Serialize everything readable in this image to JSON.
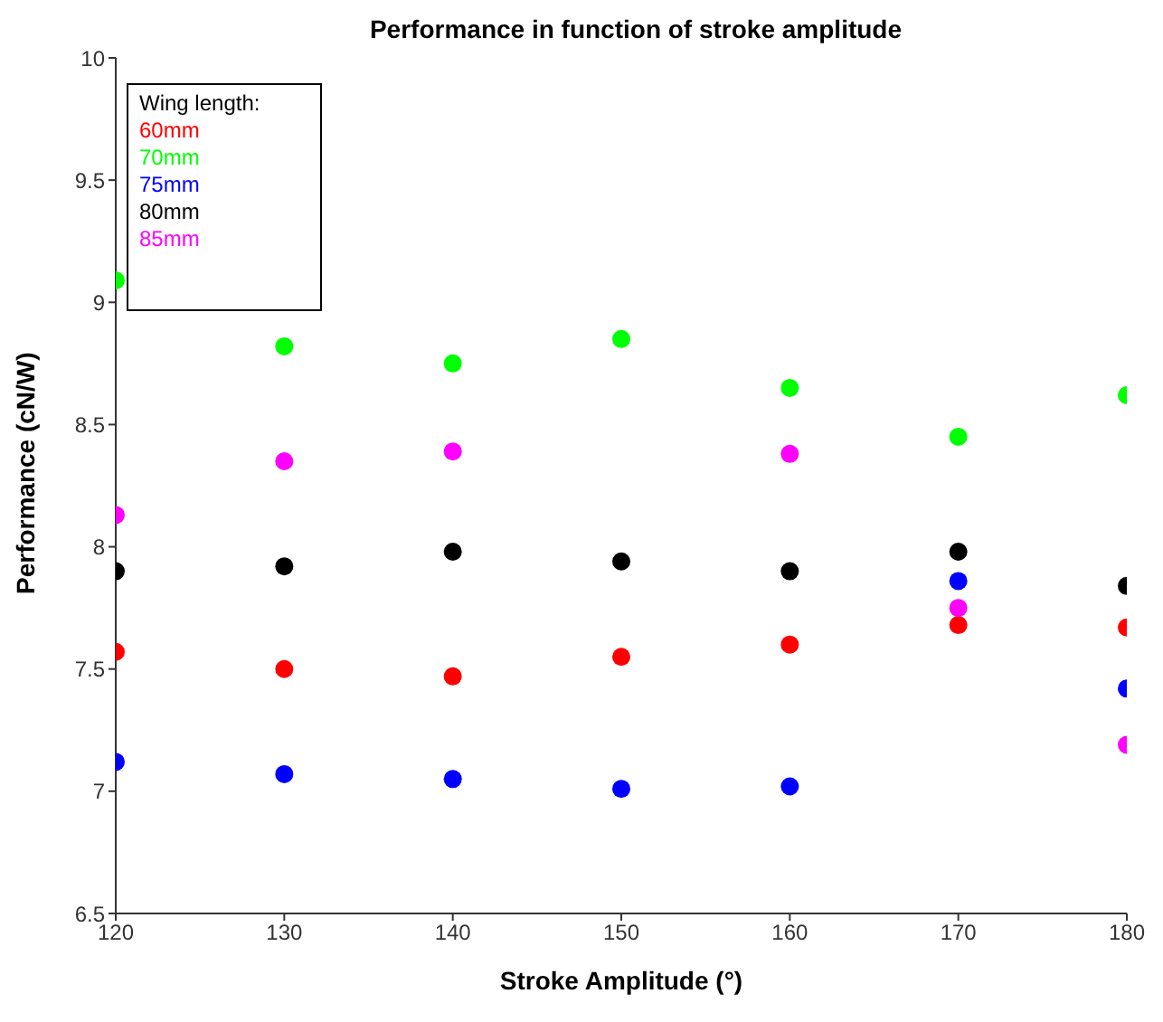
{
  "chart_data": {
    "type": "scatter",
    "title": "Performance in function of stroke amplitude",
    "xlabel": "Stroke Amplitude (°)",
    "ylabel": "Performance (cN/W)",
    "legend_title": "Wing length:",
    "legend": "top left",
    "marker": "circle",
    "grid": false,
    "x": [
      120,
      130,
      140,
      150,
      160,
      170,
      180
    ],
    "xlim": [
      120,
      180
    ],
    "xticks": [
      120,
      130,
      140,
      150,
      160,
      170,
      180
    ],
    "ylim": [
      6.5,
      10
    ],
    "yticks": [
      6.5,
      7,
      7.5,
      8,
      8.5,
      9,
      9.5,
      10
    ],
    "series": [
      {
        "name": "60mm",
        "color": "#ff0000",
        "values": [
          7.57,
          7.5,
          7.47,
          7.55,
          7.6,
          7.68,
          7.67
        ]
      },
      {
        "name": "70mm",
        "color": "#00ff00",
        "values": [
          9.09,
          8.82,
          8.75,
          8.85,
          8.65,
          8.45,
          8.62
        ]
      },
      {
        "name": "75mm",
        "color": "#0000ff",
        "values": [
          7.12,
          7.07,
          7.05,
          7.01,
          7.02,
          7.86,
          7.42
        ]
      },
      {
        "name": "80mm",
        "color": "#000000",
        "values": [
          7.9,
          7.92,
          7.98,
          7.94,
          7.9,
          7.98,
          7.84
        ]
      },
      {
        "name": "85mm",
        "color": "#ff00ff",
        "values": [
          8.13,
          8.35,
          8.39,
          null,
          8.38,
          7.75,
          7.19
        ]
      }
    ]
  }
}
